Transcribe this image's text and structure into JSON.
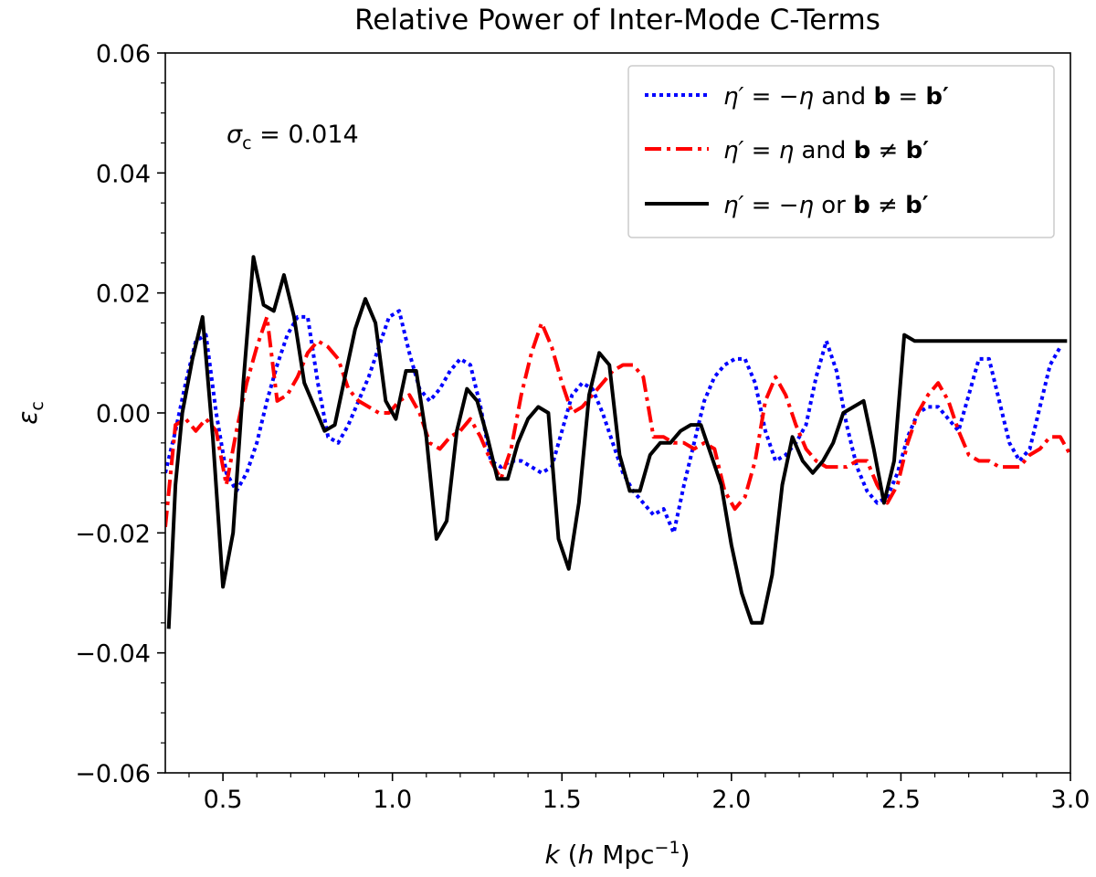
{
  "chart_data": {
    "type": "line",
    "title": "Relative Power of Inter-Mode C-Terms",
    "xlabel": {
      "var": "k",
      "paren_open": "(",
      "h": "h",
      "unit": "Mpc",
      "exp": "−1",
      "paren_close": ")"
    },
    "ylabel": {
      "var": "ε",
      "sub": "c"
    },
    "xlim": [
      0.33,
      3.0
    ],
    "ylim": [
      -0.06,
      0.06
    ],
    "xticks": [
      0.5,
      1.0,
      1.5,
      2.0,
      2.5,
      3.0
    ],
    "xtick_labels": [
      "0.5",
      "1.0",
      "1.5",
      "2.0",
      "2.5",
      "3.0"
    ],
    "yticks": [
      0.06,
      0.04,
      0.02,
      0.0,
      -0.02,
      -0.04,
      -0.06
    ],
    "ytick_labels": [
      "0.06",
      "0.04",
      "0.02",
      "0.00",
      "−0.02",
      "−0.04",
      "−0.06"
    ],
    "grid": false,
    "legend_position": "top-right",
    "annotation": {
      "sym": "σ",
      "sub": "c",
      "eq": " = ",
      "val": "0.014"
    },
    "series": [
      {
        "name": "η′ = −η and b = b′",
        "legend": {
          "p1": "η′",
          "p2": " = −",
          "p3": "η",
          "p4": " and ",
          "p5": "b",
          "p6": " = ",
          "p7": "b′"
        },
        "color": "#0000ff",
        "style": "dotted",
        "x": [
          0.33,
          0.36,
          0.39,
          0.42,
          0.45,
          0.48,
          0.51,
          0.54,
          0.57,
          0.6,
          0.63,
          0.66,
          0.69,
          0.72,
          0.75,
          0.78,
          0.81,
          0.84,
          0.87,
          0.9,
          0.93,
          0.96,
          0.99,
          1.02,
          1.05,
          1.08,
          1.11,
          1.14,
          1.17,
          1.2,
          1.23,
          1.26,
          1.29,
          1.32,
          1.35,
          1.38,
          1.41,
          1.44,
          1.47,
          1.5,
          1.53,
          1.56,
          1.59,
          1.62,
          1.65,
          1.68,
          1.71,
          1.74,
          1.77,
          1.8,
          1.83,
          1.86,
          1.89,
          1.92,
          1.95,
          1.98,
          2.01,
          2.04,
          2.07,
          2.1,
          2.13,
          2.16,
          2.19,
          2.22,
          2.25,
          2.28,
          2.31,
          2.34,
          2.37,
          2.4,
          2.43,
          2.46,
          2.49,
          2.52,
          2.55,
          2.58,
          2.61,
          2.64,
          2.67,
          2.7,
          2.73,
          2.76,
          2.79,
          2.82,
          2.85,
          2.88,
          2.91,
          2.94,
          2.97
        ],
        "y": [
          -0.01,
          -0.003,
          0.005,
          0.012,
          0.013,
          0.0,
          -0.01,
          -0.013,
          -0.01,
          -0.005,
          0.002,
          0.008,
          0.013,
          0.016,
          0.016,
          0.005,
          -0.004,
          -0.005,
          -0.002,
          0.002,
          0.006,
          0.011,
          0.016,
          0.017,
          0.01,
          0.004,
          0.002,
          0.004,
          0.007,
          0.009,
          0.008,
          0.001,
          -0.008,
          -0.009,
          -0.008,
          -0.008,
          -0.009,
          -0.01,
          -0.009,
          -0.003,
          0.003,
          0.005,
          0.004,
          0.0,
          -0.005,
          -0.01,
          -0.013,
          -0.015,
          -0.017,
          -0.016,
          -0.02,
          -0.012,
          -0.005,
          0.002,
          0.006,
          0.008,
          0.009,
          0.009,
          0.005,
          -0.003,
          -0.008,
          -0.007,
          -0.005,
          -0.002,
          0.006,
          0.012,
          0.007,
          -0.002,
          -0.009,
          -0.013,
          -0.015,
          -0.014,
          -0.01,
          -0.004,
          0.0,
          0.001,
          0.001,
          -0.001,
          -0.003,
          0.003,
          0.009,
          0.009,
          0.002,
          -0.005,
          -0.008,
          -0.006,
          0.001,
          0.008,
          0.011
        ]
      },
      {
        "name": "η′ = η and b ≠ b′",
        "legend": {
          "p1": "η′",
          "p2": " = ",
          "p3": "η",
          "p4": " and ",
          "p5": "b",
          "p6": " ≠ ",
          "p7": "b′"
        },
        "color": "#ff0000",
        "style": "dashdot",
        "x": [
          0.33,
          0.36,
          0.39,
          0.42,
          0.45,
          0.48,
          0.51,
          0.54,
          0.57,
          0.6,
          0.63,
          0.66,
          0.69,
          0.72,
          0.75,
          0.78,
          0.81,
          0.84,
          0.87,
          0.9,
          0.93,
          0.96,
          0.99,
          1.02,
          1.05,
          1.08,
          1.11,
          1.14,
          1.17,
          1.2,
          1.23,
          1.26,
          1.29,
          1.32,
          1.35,
          1.38,
          1.41,
          1.44,
          1.47,
          1.5,
          1.53,
          1.56,
          1.59,
          1.62,
          1.65,
          1.68,
          1.71,
          1.74,
          1.77,
          1.8,
          1.83,
          1.86,
          1.89,
          1.92,
          1.95,
          1.98,
          2.01,
          2.04,
          2.07,
          2.1,
          2.13,
          2.16,
          2.19,
          2.22,
          2.25,
          2.28,
          2.31,
          2.34,
          2.37,
          2.4,
          2.43,
          2.46,
          2.49,
          2.52,
          2.55,
          2.58,
          2.61,
          2.64,
          2.67,
          2.7,
          2.73,
          2.76,
          2.79,
          2.82,
          2.85,
          2.88,
          2.91,
          2.94,
          2.97,
          3.0
        ],
        "y": [
          -0.019,
          -0.002,
          -0.001,
          -0.003,
          -0.001,
          -0.003,
          -0.012,
          -0.003,
          0.005,
          0.011,
          0.016,
          0.002,
          0.003,
          0.006,
          0.01,
          0.012,
          0.011,
          0.009,
          0.004,
          0.002,
          0.001,
          0.0,
          0.0,
          0.002,
          0.003,
          0.0,
          -0.005,
          -0.006,
          -0.004,
          -0.003,
          -0.001,
          -0.004,
          -0.008,
          -0.011,
          -0.006,
          0.003,
          0.01,
          0.015,
          0.011,
          0.005,
          0.0,
          0.001,
          0.003,
          0.005,
          0.007,
          0.008,
          0.008,
          0.006,
          -0.004,
          -0.004,
          -0.005,
          -0.005,
          -0.006,
          -0.005,
          -0.006,
          -0.013,
          -0.016,
          -0.014,
          -0.008,
          0.002,
          0.006,
          0.003,
          -0.002,
          -0.006,
          -0.008,
          -0.009,
          -0.009,
          -0.009,
          -0.008,
          -0.008,
          -0.012,
          -0.015,
          -0.012,
          -0.005,
          0.0,
          0.003,
          0.005,
          0.002,
          -0.003,
          -0.007,
          -0.008,
          -0.008,
          -0.009,
          -0.009,
          -0.009,
          -0.007,
          -0.006,
          -0.004,
          -0.004,
          -0.007
        ]
      },
      {
        "name": "η′ = −η or b ≠ b′",
        "legend": {
          "p1": "η′",
          "p2": " = −",
          "p3": "η",
          "p4": " or ",
          "p5": "b",
          "p6": " ≠ ",
          "p7": "b′"
        },
        "color": "#000000",
        "style": "solid",
        "x": [
          0.34,
          0.36,
          0.38,
          0.41,
          0.44,
          0.47,
          0.5,
          0.53,
          0.56,
          0.59,
          0.62,
          0.65,
          0.68,
          0.71,
          0.74,
          0.77,
          0.8,
          0.83,
          0.86,
          0.89,
          0.92,
          0.95,
          0.98,
          1.01,
          1.04,
          1.07,
          1.1,
          1.13,
          1.16,
          1.19,
          1.22,
          1.25,
          1.28,
          1.31,
          1.34,
          1.37,
          1.4,
          1.43,
          1.46,
          1.49,
          1.52,
          1.55,
          1.58,
          1.61,
          1.64,
          1.67,
          1.7,
          1.73,
          1.76,
          1.79,
          1.82,
          1.85,
          1.88,
          1.91,
          1.94,
          1.97,
          2.0,
          2.03,
          2.06,
          2.09,
          2.12,
          2.15,
          2.18,
          2.21,
          2.24,
          2.27,
          2.3,
          2.33,
          2.36,
          2.39,
          2.42,
          2.45,
          2.48,
          2.51,
          2.54,
          2.57,
          2.6,
          2.63,
          2.66,
          2.69,
          2.72,
          2.75,
          2.78,
          2.81,
          2.84,
          2.87,
          2.9,
          2.93,
          2.96,
          2.99
        ],
        "y": [
          -0.036,
          -0.012,
          0.0,
          0.009,
          0.016,
          -0.004,
          -0.029,
          -0.02,
          0.005,
          0.026,
          0.018,
          0.017,
          0.023,
          0.016,
          0.005,
          0.001,
          -0.003,
          -0.002,
          0.006,
          0.014,
          0.019,
          0.015,
          0.002,
          -0.001,
          0.007,
          0.007,
          -0.004,
          -0.021,
          -0.018,
          -0.003,
          0.004,
          0.002,
          -0.004,
          -0.011,
          -0.011,
          -0.005,
          -0.001,
          0.001,
          0.0,
          -0.021,
          -0.026,
          -0.015,
          0.003,
          0.01,
          0.008,
          -0.007,
          -0.013,
          -0.013,
          -0.007,
          -0.005,
          -0.005,
          -0.003,
          -0.002,
          -0.002,
          -0.007,
          -0.012,
          -0.022,
          -0.03,
          -0.035,
          -0.035,
          -0.027,
          -0.012,
          -0.004,
          -0.008,
          -0.01,
          -0.008,
          -0.005,
          0.0,
          0.001,
          0.002,
          -0.006,
          -0.015,
          -0.008,
          0.013,
          0.012,
          0.012,
          0.012,
          0.012,
          0.012,
          0.012,
          0.012,
          0.012,
          0.012,
          0.012,
          0.012,
          0.012,
          0.012,
          0.012,
          0.012,
          0.012
        ]
      }
    ]
  }
}
